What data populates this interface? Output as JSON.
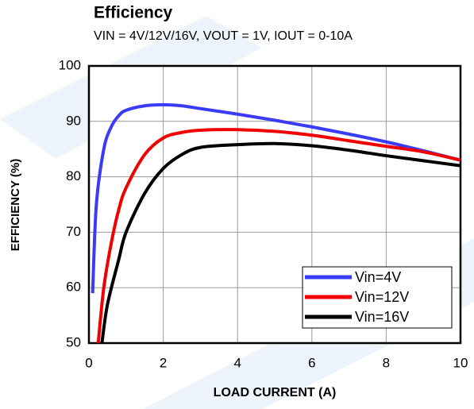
{
  "chart_data": {
    "type": "line",
    "title": "Efficiency",
    "subtitle": "VIN = 4V/12V/16V, VOUT = 1V, IOUT = 0-10A",
    "xlabel": "LOAD CURRENT  (A)",
    "ylabel": "EFFICIENCY  (%)",
    "xlim": [
      0,
      10
    ],
    "xticks": [
      0,
      2,
      4,
      6,
      8,
      10
    ],
    "ylim": [
      50,
      100
    ],
    "yticks": [
      50,
      60,
      70,
      80,
      90,
      100
    ],
    "grid": true,
    "legend": "lower right",
    "series": [
      {
        "name": "Vin=4V",
        "color": "#3b3bf5",
        "x": [
          0.1,
          0.2,
          0.4,
          0.6,
          0.8,
          1,
          1.5,
          2,
          2.5,
          3,
          4,
          5,
          6,
          7,
          8,
          9,
          10
        ],
        "values": [
          59,
          75,
          85,
          89,
          91,
          92,
          92.8,
          93,
          92.8,
          92.3,
          91.3,
          90.2,
          89,
          87.7,
          86.3,
          84.7,
          83
        ]
      },
      {
        "name": "Vin=12V",
        "color": "#f00000",
        "x": [
          0.25,
          0.4,
          0.6,
          0.8,
          1,
          1.5,
          2,
          2.5,
          3,
          4,
          5,
          6,
          7,
          8,
          9,
          10
        ],
        "values": [
          50,
          60,
          68,
          74,
          78,
          84,
          87,
          88,
          88.4,
          88.5,
          88.2,
          87.5,
          86.5,
          85.5,
          84.5,
          83
        ]
      },
      {
        "name": "Vin=16V",
        "color": "#000000",
        "x": [
          0.35,
          0.5,
          0.8,
          1,
          1.5,
          2,
          2.5,
          3,
          4,
          5,
          6,
          7,
          8,
          9,
          10
        ],
        "values": [
          50,
          57,
          65,
          70,
          77,
          81.5,
          84,
          85.3,
          85.8,
          86,
          85.6,
          84.8,
          83.8,
          82.9,
          82
        ]
      }
    ]
  }
}
